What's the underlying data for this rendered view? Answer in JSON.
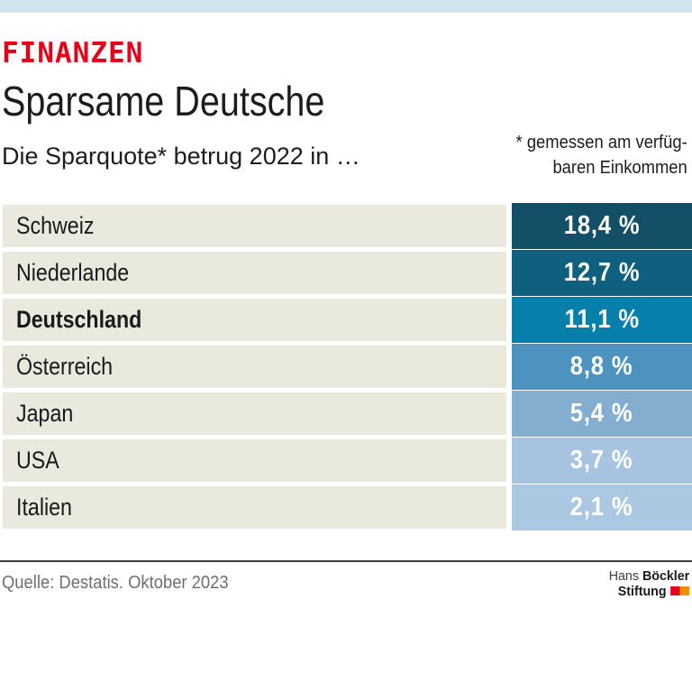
{
  "header": {
    "kicker": "FINANZEN",
    "title": "Sparsame Deutsche",
    "subtitle": "Die Sparquote* betrug 2022 in …",
    "footnote_line1": "* gemessen am verfüg-",
    "footnote_line2": "baren Einkommen"
  },
  "chart_data": {
    "type": "bar",
    "title": "Sparsame Deutsche",
    "subtitle": "Die Sparquote* betrug 2022 in …",
    "note": "* gemessen am verfügbaren Einkommen",
    "categories": [
      "Schweiz",
      "Niederlande",
      "Deutschland",
      "Österreich",
      "Japan",
      "USA",
      "Italien"
    ],
    "values": [
      18.4,
      12.7,
      11.1,
      8.8,
      5.4,
      3.7,
      2.1
    ],
    "value_labels": [
      "18,4 %",
      "12,7 %",
      "11,1 %",
      "8,8 %",
      "5,4 %",
      "3,7 %",
      "2,1 %"
    ],
    "unit": "%",
    "highlighted_category": "Deutschland",
    "bar_colors": [
      "#144f68",
      "#0f607f",
      "#0680ab",
      "#4c93bf",
      "#84aed0",
      "#a6c4df",
      "#aac8e2"
    ],
    "source": "Quelle: Destatis. Oktober 2023",
    "legend_position": "none",
    "grid": false
  },
  "table": {
    "rows": [
      {
        "label": "Schweiz",
        "value": "18,4 %",
        "color": "#144f68",
        "bold": false
      },
      {
        "label": "Niederlande",
        "value": "12,7 %",
        "color": "#0f607f",
        "bold": false
      },
      {
        "label": "Deutschland",
        "value": "11,1 %",
        "color": "#0680ab",
        "bold": true
      },
      {
        "label": "Österreich",
        "value": "8,8 %",
        "color": "#4c93bf",
        "bold": false
      },
      {
        "label": "Japan",
        "value": "5,4 %",
        "color": "#84aed0",
        "bold": false
      },
      {
        "label": "USA",
        "value": "3,7 %",
        "color": "#a6c4df",
        "bold": false
      },
      {
        "label": "Italien",
        "value": "2,1 %",
        "color": "#aac8e2",
        "bold": false
      }
    ]
  },
  "footer": {
    "source": "Quelle: Destatis. Oktober 2023",
    "logo_line1_regular": "Hans",
    "logo_line1_bold": "Böckler",
    "logo_line2_bold": "Stiftung"
  },
  "colors": {
    "accent_red": "#e60019",
    "topbar_blue": "#cfe4ef",
    "row_beige": "#eae9de",
    "divider_dark": "#3c3c3c",
    "text_dark": "#1a1a1a",
    "text_gray": "#6f6f6f",
    "logo_red": "#e2001a",
    "logo_orange": "#f08f00",
    "value_text_white": "#ffffff"
  }
}
